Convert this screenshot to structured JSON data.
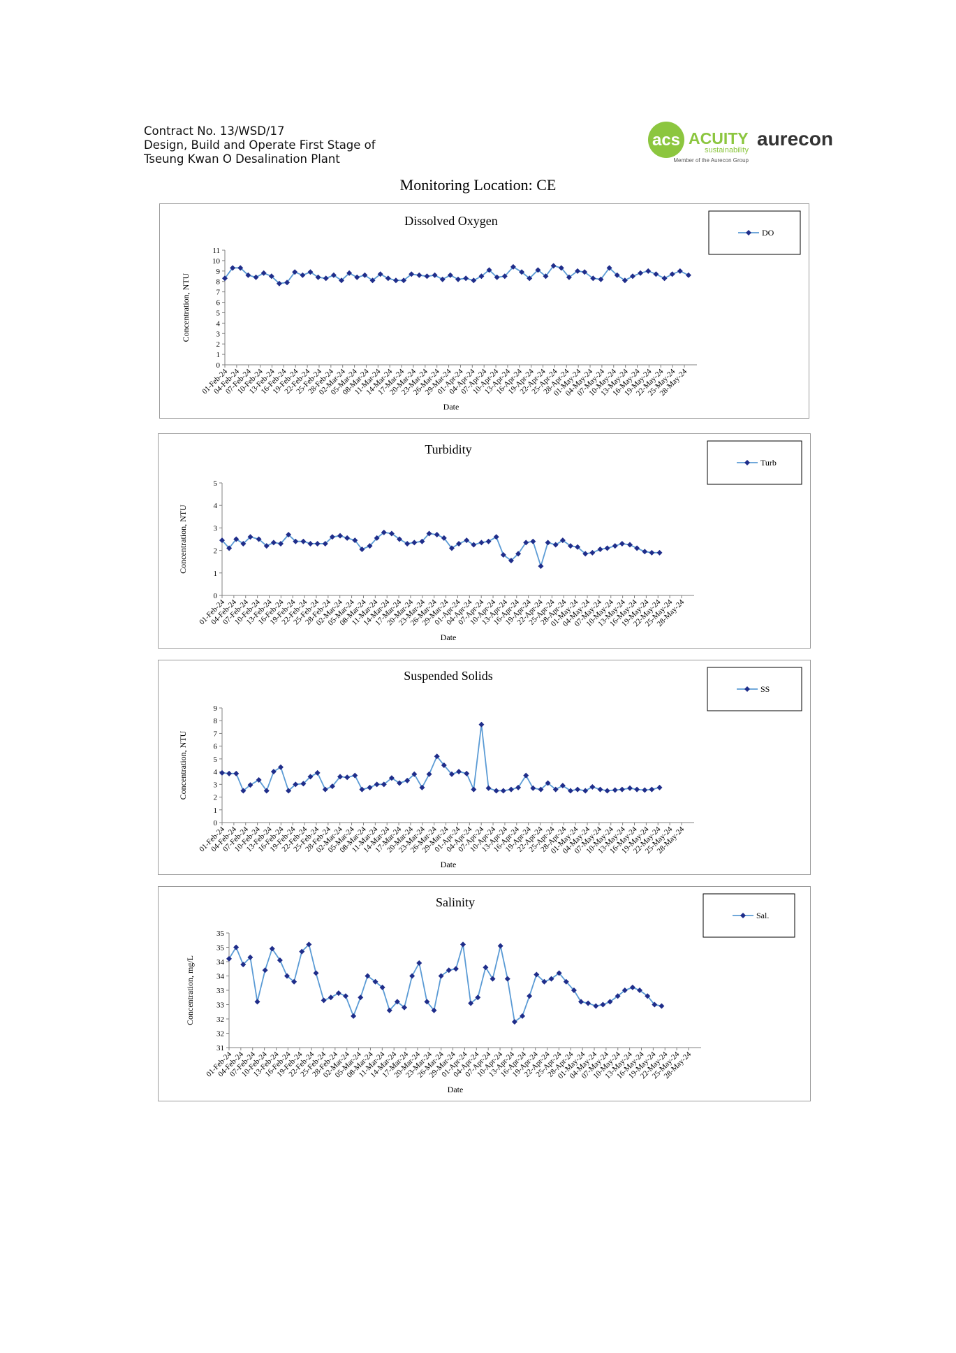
{
  "header": {
    "line1": "Contract No. 13/WSD/17",
    "line2": "Design, Build and Operate First Stage of",
    "line3": "Tseung Kwan O Desalination Plant"
  },
  "logos": {
    "acuity_monogram": "acs",
    "acuity_name": "ACUITY",
    "acuity_sub": "sustainability",
    "acuity_member": "Member of the Aurecon Group",
    "aurecon": "aurecon",
    "acuity_color": "#8cc63f",
    "aurecon_color": "#333333"
  },
  "page_title": "Monitoring Location: CE",
  "colors": {
    "series": "#5b9bd5",
    "marker": "#1f2d8a",
    "axis": "#808080"
  },
  "chart_data": [
    {
      "type": "line",
      "title": "Dissolved Oxygen",
      "xlabel": "Date",
      "ylabel": "Concentration, NTU",
      "ylim": [
        0,
        11
      ],
      "yticks": [
        0,
        1,
        2,
        3,
        4,
        5,
        6,
        7,
        8,
        9,
        10,
        11
      ],
      "legend": "top-right",
      "series_name": "DO",
      "x_ticks": [
        "01-Feb-24",
        "04-Feb-24",
        "07-Feb-24",
        "10-Feb-24",
        "13-Feb-24",
        "16-Feb-24",
        "19-Feb-24",
        "22-Feb-24",
        "25-Feb-24",
        "28-Feb-24",
        "02-Mar-24",
        "05-Mar-24",
        "08-Mar-24",
        "11-Mar-24",
        "14-Mar-24",
        "17-Mar-24",
        "20-Mar-24",
        "23-Mar-24",
        "26-Mar-24",
        "29-Mar-24",
        "01-Apr-24",
        "04-Apr-24",
        "07-Apr-24",
        "10-Apr-24",
        "13-Apr-24",
        "16-Apr-24",
        "19-Apr-24",
        "22-Apr-24",
        "25-Apr-24",
        "28-Apr-24",
        "01-May-24",
        "04-May-24",
        "07-May-24",
        "10-May-24",
        "13-May-24",
        "16-May-24",
        "19-May-24",
        "22-May-24",
        "25-May-24",
        "28-May-24"
      ],
      "x": [
        0,
        1.1,
        2.2,
        3.3,
        4.4,
        5.5,
        6.6,
        7.7,
        8.8,
        9.9,
        11,
        12.1,
        13.2,
        14.3,
        15.4,
        16.5,
        17.6,
        18.7,
        19.8,
        20.9,
        22,
        23.1,
        24.2,
        25.3,
        26.4,
        27.5,
        28.6,
        29.7,
        30.8,
        31.9,
        33,
        34.1,
        35.2,
        36.3,
        37.4,
        38.5,
        39.6,
        40.8,
        42,
        43.1,
        44.3,
        45.4,
        46.5,
        47.6,
        48.7,
        49.9,
        50.9,
        52.1,
        53.2,
        54.4,
        55.5,
        56.6,
        57.7,
        58.8,
        59.9,
        61,
        62.2,
        63.3,
        64.4,
        65.6
      ],
      "y": [
        8.3,
        9.3,
        9.3,
        8.6,
        8.4,
        8.8,
        8.5,
        7.8,
        7.9,
        8.9,
        8.6,
        8.9,
        8.4,
        8.3,
        8.6,
        8.1,
        8.8,
        8.4,
        8.6,
        8.1,
        8.7,
        8.3,
        8.1,
        8.1,
        8.7,
        8.6,
        8.5,
        8.6,
        8.2,
        8.6,
        8.2,
        8.3,
        8.1,
        8.5,
        9.1,
        8.4,
        8.5,
        9.4,
        8.9,
        8.3,
        9.1,
        8.5,
        9.5,
        9.3,
        8.4,
        9.0,
        8.9,
        8.3,
        8.2,
        9.3,
        8.6,
        8.1,
        8.5,
        8.8,
        9.0,
        8.7,
        8.3,
        8.7,
        9.0,
        8.6
      ]
    },
    {
      "type": "line",
      "title": "Turbidity",
      "xlabel": "Date",
      "ylabel": "Concentration, NTU",
      "ylim": [
        0,
        5
      ],
      "yticks": [
        0,
        1,
        2,
        3,
        4,
        5
      ],
      "legend": "top-right",
      "series_name": "Turb",
      "x_ticks": [
        "01-Feb-24",
        "04-Feb-24",
        "07-Feb-24",
        "10-Feb-24",
        "13-Feb-24",
        "16-Feb-24",
        "19-Feb-24",
        "22-Feb-24",
        "25-Feb-24",
        "28-Feb-24",
        "02-Mar-24",
        "05-Mar-24",
        "08-Mar-24",
        "11-Mar-24",
        "14-Mar-24",
        "17-Mar-24",
        "20-Mar-24",
        "23-Mar-24",
        "26-Mar-24",
        "29-Mar-24",
        "01-Apr-24",
        "04-Apr-24",
        "07-Apr-24",
        "10-Apr-24",
        "13-Apr-24",
        "16-Apr-24",
        "19-Apr-24",
        "22-Apr-24",
        "25-Apr-24",
        "28-Apr-24",
        "01-May-24",
        "04-May-24",
        "07-May-24",
        "10-May-24",
        "13-May-24",
        "16-May-24",
        "19-May-24",
        "22-May-24",
        "25-May-24",
        "28-May-24"
      ],
      "x": [
        0,
        1,
        2,
        3,
        4,
        5.2,
        6.3,
        7.3,
        8.3,
        9.4,
        10.4,
        11.5,
        12.5,
        13.5,
        14.6,
        15.6,
        16.7,
        17.7,
        18.8,
        19.8,
        20.9,
        21.9,
        22.9,
        24,
        25.1,
        26.2,
        27.2,
        28.3,
        29.3,
        30.4,
        31.4,
        32.5,
        33.5,
        34.6,
        35.6,
        36.7,
        37.7,
        38.8,
        39.8,
        40.9,
        41.9,
        43,
        44,
        45.1,
        46.1,
        47.2,
        48.2,
        49.3,
        50.3,
        51.4,
        52.4,
        53.5,
        54.5,
        55.6,
        56.6,
        57.7,
        58.7,
        59.8,
        60.8,
        61.9
      ],
      "y": [
        2.45,
        2.1,
        2.5,
        2.3,
        2.6,
        2.5,
        2.2,
        2.35,
        2.3,
        2.7,
        2.4,
        2.4,
        2.3,
        2.3,
        2.3,
        2.6,
        2.65,
        2.55,
        2.45,
        2.05,
        2.2,
        2.55,
        2.8,
        2.75,
        2.5,
        2.3,
        2.35,
        2.4,
        2.75,
        2.7,
        2.55,
        2.1,
        2.3,
        2.45,
        2.25,
        2.35,
        2.4,
        2.6,
        1.8,
        1.55,
        1.85,
        2.35,
        2.4,
        1.3,
        2.35,
        2.25,
        2.45,
        2.2,
        2.15,
        1.85,
        1.9,
        2.05,
        2.1,
        2.2,
        2.3,
        2.25,
        2.1,
        1.95,
        1.9,
        1.9
      ]
    },
    {
      "type": "line",
      "title": "Suspended Solids",
      "xlabel": "Date",
      "ylabel": "Concentration, NTU",
      "ylim": [
        0,
        9
      ],
      "yticks": [
        0,
        1,
        2,
        3,
        4,
        5,
        6,
        7,
        8,
        9
      ],
      "legend": "top-right",
      "series_name": "SS",
      "x_ticks": [
        "01-Feb-24",
        "04-Feb-24",
        "07-Feb-24",
        "10-Feb-24",
        "13-Feb-24",
        "16-Feb-24",
        "19-Feb-24",
        "22-Feb-24",
        "25-Feb-24",
        "28-Feb-24",
        "02-Mar-24",
        "05-Mar-24",
        "08-Mar-24",
        "11-Mar-24",
        "14-Mar-24",
        "17-Mar-24",
        "20-Mar-24",
        "23-Mar-24",
        "26-Mar-24",
        "29-Mar-24",
        "01-Apr-24",
        "04-Apr-24",
        "07-Apr-24",
        "10-Apr-24",
        "13-Apr-24",
        "16-Apr-24",
        "19-Apr-24",
        "22-Apr-24",
        "25-Apr-24",
        "28-Apr-24",
        "01-May-24",
        "04-May-24",
        "07-May-24",
        "10-May-24",
        "13-May-24",
        "16-May-24",
        "19-May-24",
        "22-May-24",
        "25-May-24",
        "28-May-24"
      ],
      "x": [
        0,
        1,
        2,
        3,
        4,
        5.2,
        6.3,
        7.3,
        8.3,
        9.4,
        10.4,
        11.5,
        12.5,
        13.5,
        14.6,
        15.6,
        16.7,
        17.7,
        18.8,
        19.8,
        20.9,
        21.9,
        22.9,
        24,
        25.1,
        26.2,
        27.2,
        28.3,
        29.3,
        30.4,
        31.4,
        32.5,
        33.5,
        34.6,
        35.6,
        36.7,
        37.7,
        38.8,
        39.8,
        40.9,
        41.9,
        43,
        44,
        45.1,
        46.1,
        47.2,
        48.2,
        49.3,
        50.3,
        51.4,
        52.4,
        53.5,
        54.5,
        55.6,
        56.6,
        57.7,
        58.7,
        59.8,
        60.8,
        61.9
      ],
      "y": [
        3.9,
        3.85,
        3.85,
        2.5,
        2.95,
        3.35,
        2.5,
        4.0,
        4.35,
        2.5,
        3.0,
        3.05,
        3.6,
        3.9,
        2.6,
        2.85,
        3.6,
        3.55,
        3.7,
        2.6,
        2.75,
        3.0,
        3.0,
        3.5,
        3.1,
        3.3,
        3.8,
        2.75,
        3.8,
        5.2,
        4.5,
        3.8,
        4.0,
        3.85,
        2.6,
        7.7,
        2.7,
        2.5,
        2.5,
        2.6,
        2.75,
        3.7,
        2.7,
        2.6,
        3.1,
        2.6,
        2.9,
        2.5,
        2.6,
        2.5,
        2.8,
        2.6,
        2.5,
        2.55,
        2.6,
        2.7,
        2.6,
        2.55,
        2.6,
        2.75
      ]
    },
    {
      "type": "line",
      "title": "Salinity",
      "xlabel": "Date",
      "ylabel": "Concentration, mg/L",
      "ylim": [
        31,
        35
      ],
      "ytick_labels": [
        "31",
        "32",
        "32",
        "33",
        "33",
        "34",
        "34",
        "35",
        "35"
      ],
      "legend": "top-right",
      "series_name": "Sal.",
      "x_ticks": [
        "01-Feb-24",
        "04-Feb-24",
        "07-Feb-24",
        "10-Feb-24",
        "13-Feb-24",
        "16-Feb-24",
        "19-Feb-24",
        "22-Feb-24",
        "25-Feb-24",
        "28-Feb-24",
        "02-Mar-24",
        "05-Mar-24",
        "08-Mar-24",
        "11-Mar-24",
        "14-Mar-24",
        "17-Mar-24",
        "20-Mar-24",
        "23-Mar-24",
        "26-Mar-24",
        "29-Mar-24",
        "01-Apr-24",
        "04-Apr-24",
        "07-Apr-24",
        "10-Apr-24",
        "13-Apr-24",
        "16-Apr-24",
        "19-Apr-24",
        "22-Apr-24",
        "25-Apr-24",
        "28-Apr-24",
        "01-May-24",
        "04-May-24",
        "07-May-24",
        "10-May-24",
        "13-May-24",
        "16-May-24",
        "19-May-24",
        "22-May-24",
        "25-May-24",
        "28-May-24"
      ],
      "x": [
        0,
        1,
        2,
        3,
        4,
        5.1,
        6.1,
        7.2,
        8.2,
        9.2,
        10.3,
        11.3,
        12.3,
        13.4,
        14.4,
        15.5,
        16.5,
        17.6,
        18.6,
        19.6,
        20.7,
        21.7,
        22.7,
        23.8,
        24.8,
        25.9,
        26.9,
        28,
        29,
        30,
        31.1,
        32.1,
        33.1,
        34.2,
        35.2,
        36.3,
        37.3,
        38.4,
        39.4,
        40.4,
        41.5,
        42.5,
        43.5,
        44.6,
        45.6,
        46.7,
        47.7,
        48.8,
        49.8,
        50.8,
        51.9,
        52.9,
        53.9,
        55,
        56,
        57.1,
        58.1,
        59.2,
        60.2,
        61.2
      ],
      "y": [
        34.1,
        34.5,
        33.9,
        34.15,
        32.6,
        33.7,
        34.45,
        34.05,
        33.5,
        33.3,
        34.35,
        34.6,
        33.6,
        32.65,
        32.75,
        32.9,
        32.8,
        32.1,
        32.75,
        33.5,
        33.3,
        33.1,
        32.3,
        32.6,
        32.4,
        33.5,
        33.95,
        32.6,
        32.3,
        33.5,
        33.7,
        33.75,
        34.6,
        32.55,
        32.75,
        33.8,
        33.4,
        34.55,
        33.4,
        31.9,
        32.1,
        32.8,
        33.55,
        33.3,
        33.4,
        33.6,
        33.3,
        33.0,
        32.6,
        32.55,
        32.45,
        32.5,
        32.6,
        32.8,
        33.0,
        33.1,
        33.0,
        32.8,
        32.5,
        32.45
      ]
    }
  ]
}
